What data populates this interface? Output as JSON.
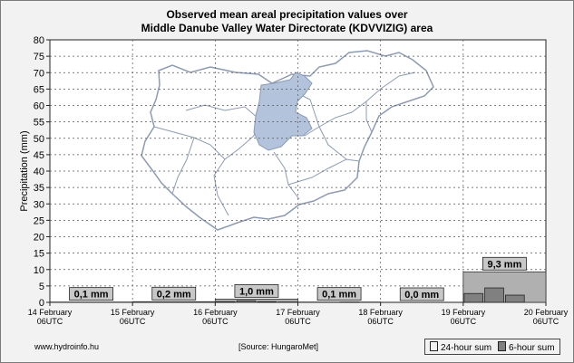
{
  "chart_data": {
    "type": "bar",
    "title_line1": "Observed mean areal precipitation values over",
    "title_line2": "Middle Danube Valley Water Directorate (KDVVIZIG) area",
    "ylabel": "Precipitation (mm)",
    "ylim": [
      0,
      80
    ],
    "yticks": [
      0,
      5,
      10,
      15,
      20,
      25,
      30,
      35,
      40,
      45,
      50,
      55,
      60,
      65,
      70,
      75,
      80
    ],
    "x_ticks": [
      {
        "line1": "14 February",
        "line2": "06UTC"
      },
      {
        "line1": "15 February",
        "line2": "06UTC"
      },
      {
        "line1": "16 February",
        "line2": "06UTC"
      },
      {
        "line1": "17 February",
        "line2": "06UTC"
      },
      {
        "line1": "18 February",
        "line2": "06UTC"
      },
      {
        "line1": "19 February",
        "line2": "06UTC"
      },
      {
        "line1": "20 February",
        "line2": "06UTC"
      }
    ],
    "grid": true,
    "series": [
      {
        "name": "24-hour sum",
        "color": "#b0b0b0",
        "values": [
          0.1,
          0.2,
          1.0,
          0.1,
          0.0,
          9.3
        ],
        "labels": [
          "0,1 mm",
          "0,2 mm",
          "1,0 mm",
          "0,1 mm",
          "0,0 mm",
          "9,3 mm"
        ]
      },
      {
        "name": "6-hour sum",
        "color": "#808080",
        "values": [
          0,
          0,
          0,
          0,
          0,
          0,
          0,
          0,
          0.2,
          0.5,
          0.2,
          0.1,
          0,
          0,
          0.1,
          0,
          0,
          0,
          0,
          0,
          2.7,
          4.4,
          2.2,
          0
        ]
      }
    ],
    "legend_position": "bottom-right"
  },
  "footer": {
    "site": "www.hydroinfo.hu",
    "source": "[Source: HungaroMet]"
  },
  "legend_labels": {
    "day": "24-hour sum",
    "six": "6-hour sum"
  },
  "colors": {
    "background": "#f2f2f2",
    "map_fill": "#b3c3dc",
    "map_outline": "#8c9bb5",
    "label_box": "#c8c8c8"
  }
}
